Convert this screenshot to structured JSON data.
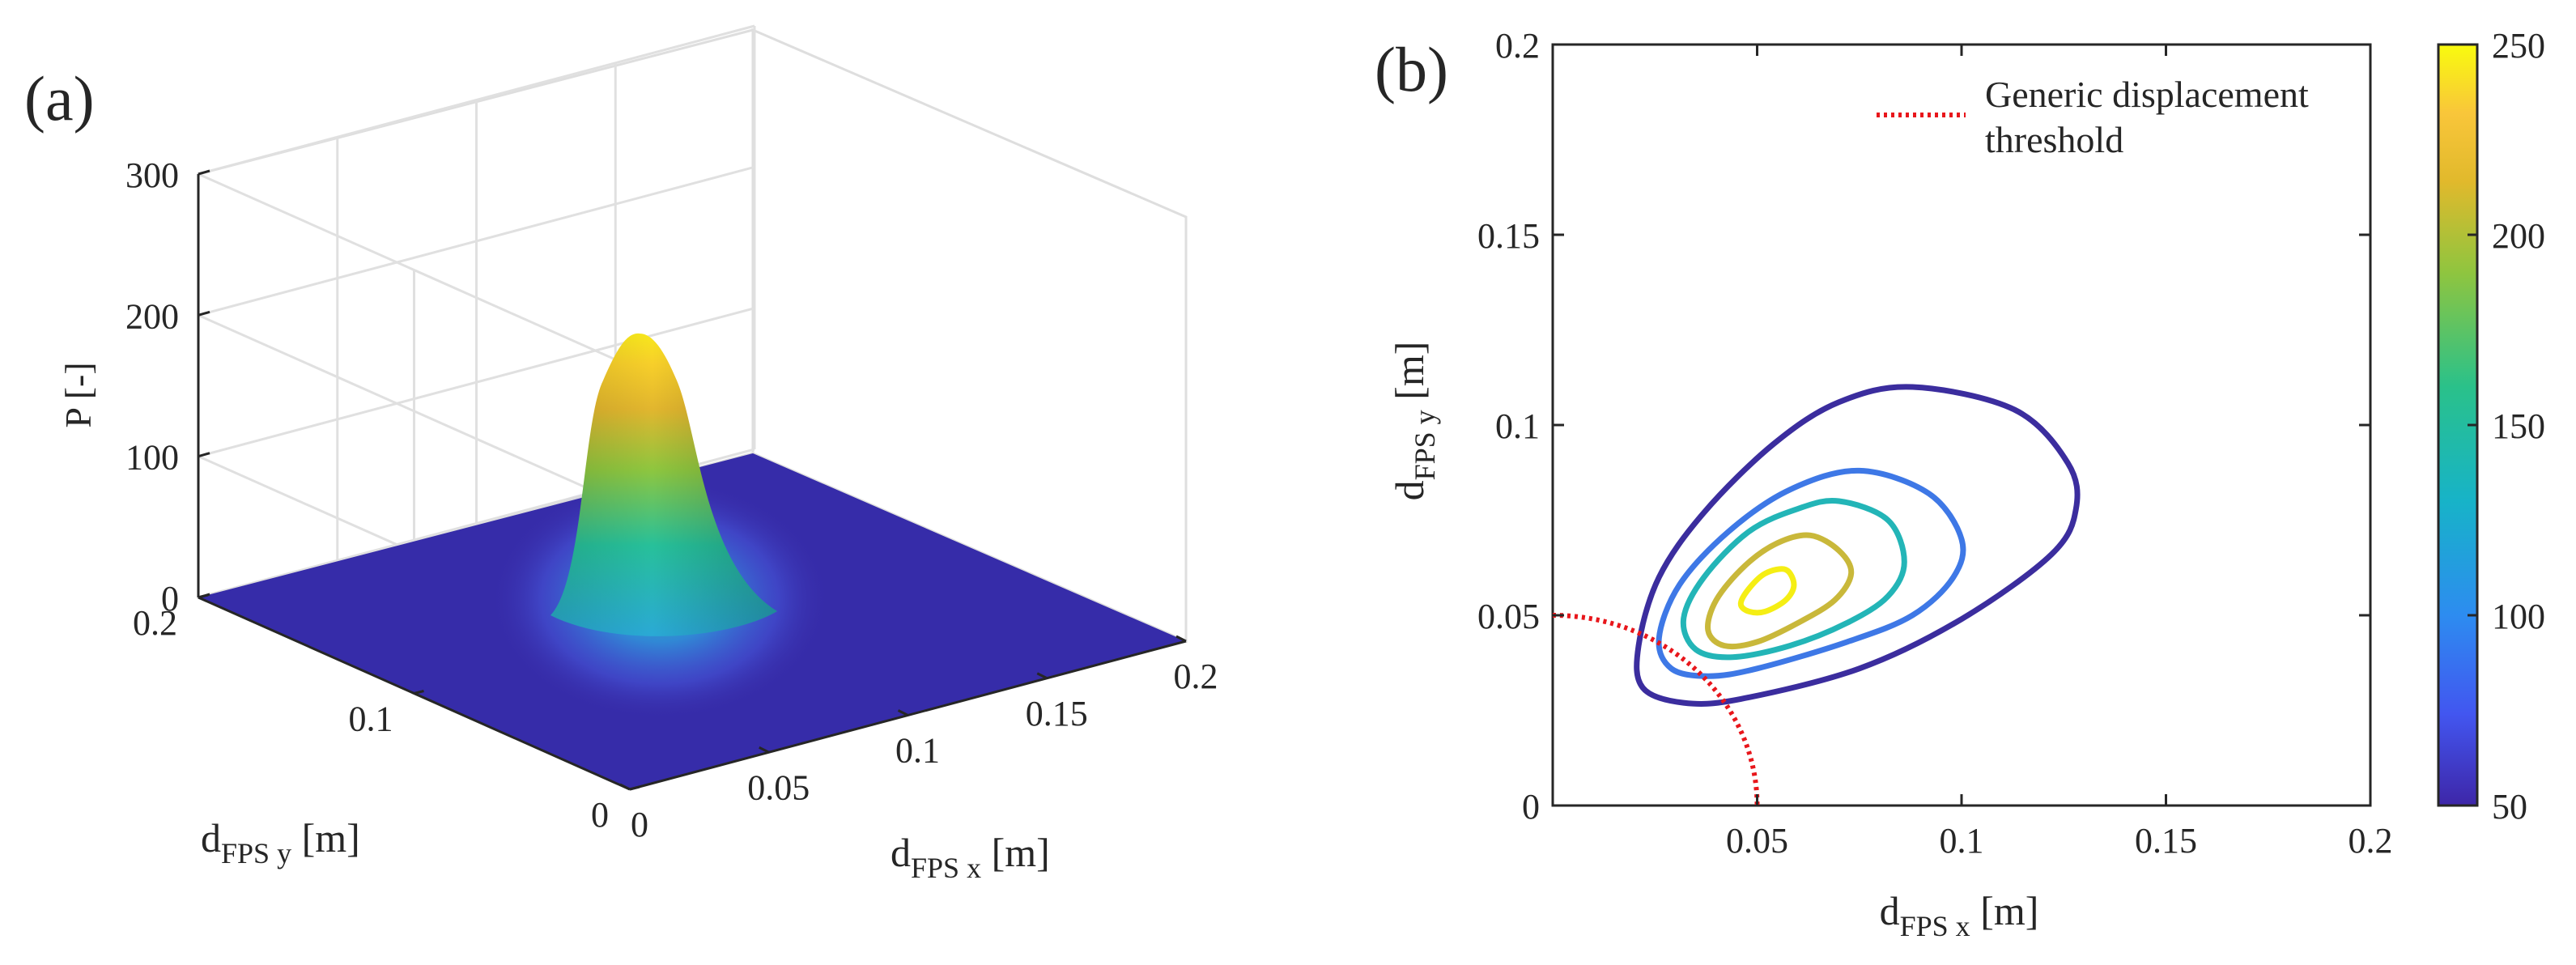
{
  "panels": {
    "a_label": "(a)",
    "b_label": "(b)"
  },
  "chart_data": [
    {
      "panel": "a",
      "type": "surface",
      "zlabel": "P [-]",
      "xlabel": {
        "main": "d",
        "sub": "FPS x",
        "unit": " [m]"
      },
      "ylabel": {
        "main": "d",
        "sub": "FPS y",
        "unit": " [m]"
      },
      "xlim": [
        0,
        0.2
      ],
      "ylim": [
        0,
        0.2
      ],
      "zlim": [
        0,
        300
      ],
      "xticks": [
        0,
        0.05,
        0.1,
        0.15,
        0.2
      ],
      "xtick_labels": [
        "0",
        "0.05",
        "0.1",
        "0.15",
        "0.2"
      ],
      "yticks": [
        0,
        0.1,
        0.2
      ],
      "ytick_labels": [
        "0",
        "0.1",
        "0.2"
      ],
      "zticks": [
        0,
        100,
        200,
        300
      ],
      "ztick_labels": [
        "0",
        "100",
        "200",
        "300"
      ],
      "grid": true,
      "peak": {
        "x": 0.055,
        "y": 0.055,
        "z": 252
      },
      "colormap": [
        "#3e26a8",
        "#4256f0",
        "#2d8cf0",
        "#17b3c8",
        "#2ac18a",
        "#8fc53f",
        "#e1b92c",
        "#f9d425",
        "#f9fb0e"
      ]
    },
    {
      "panel": "b",
      "type": "contour",
      "xlabel": {
        "main": "d",
        "sub": "FPS x",
        "unit": " [m]"
      },
      "ylabel": {
        "main": "d",
        "sub": "FPS y",
        "unit": " [m]"
      },
      "xlim": [
        0,
        0.2
      ],
      "ylim": [
        0,
        0.2
      ],
      "xticks": [
        0.05,
        0.1,
        0.15,
        0.2
      ],
      "xtick_labels": [
        "0.05",
        "0.1",
        "0.15",
        "0.2"
      ],
      "yticks": [
        0,
        0.05,
        0.1,
        0.15,
        0.2
      ],
      "ytick_labels": [
        "0",
        "0.05",
        "0.1",
        "0.15",
        "0.2"
      ],
      "contour_levels": [
        50,
        100,
        150,
        200,
        250
      ],
      "contours": [
        {
          "level": 50,
          "color": "#3b2d9e",
          "points": [
            [
              0.088,
              0.11
            ],
            [
              0.113,
              0.104
            ],
            [
              0.126,
              0.09
            ],
            [
              0.128,
              0.078
            ],
            [
              0.122,
              0.066
            ],
            [
              0.1,
              0.049
            ],
            [
              0.075,
              0.036
            ],
            [
              0.046,
              0.028
            ],
            [
              0.032,
              0.027
            ],
            [
              0.022,
              0.031
            ],
            [
              0.021,
              0.042
            ],
            [
              0.026,
              0.06
            ],
            [
              0.037,
              0.077
            ],
            [
              0.054,
              0.095
            ],
            [
              0.07,
              0.106
            ]
          ]
        },
        {
          "level": 100,
          "color": "#3e78e6",
          "points": [
            [
              0.075,
              0.088
            ],
            [
              0.092,
              0.082
            ],
            [
              0.1,
              0.07
            ],
            [
              0.098,
              0.06
            ],
            [
              0.088,
              0.05
            ],
            [
              0.072,
              0.043
            ],
            [
              0.05,
              0.036
            ],
            [
              0.038,
              0.034
            ],
            [
              0.029,
              0.036
            ],
            [
              0.026,
              0.044
            ],
            [
              0.031,
              0.058
            ],
            [
              0.043,
              0.072
            ],
            [
              0.058,
              0.083
            ]
          ]
        },
        {
          "level": 150,
          "color": "#23b5b7",
          "points": [
            [
              0.07,
              0.08
            ],
            [
              0.082,
              0.075
            ],
            [
              0.086,
              0.064
            ],
            [
              0.082,
              0.055
            ],
            [
              0.072,
              0.048
            ],
            [
              0.058,
              0.042
            ],
            [
              0.044,
              0.039
            ],
            [
              0.035,
              0.041
            ],
            [
              0.032,
              0.049
            ],
            [
              0.037,
              0.06
            ],
            [
              0.048,
              0.072
            ],
            [
              0.06,
              0.078
            ]
          ]
        },
        {
          "level": 200,
          "color": "#c9b83a",
          "points": [
            [
              0.063,
              0.071
            ],
            [
              0.07,
              0.067
            ],
            [
              0.073,
              0.061
            ],
            [
              0.069,
              0.054
            ],
            [
              0.06,
              0.048
            ],
            [
              0.05,
              0.043
            ],
            [
              0.042,
              0.042
            ],
            [
              0.038,
              0.046
            ],
            [
              0.04,
              0.054
            ],
            [
              0.047,
              0.063
            ],
            [
              0.055,
              0.069
            ]
          ]
        },
        {
          "level": 250,
          "color": "#f5ee14",
          "points": [
            [
              0.057,
              0.062
            ],
            [
              0.059,
              0.058
            ],
            [
              0.057,
              0.054
            ],
            [
              0.052,
              0.051
            ],
            [
              0.048,
              0.051
            ],
            [
              0.046,
              0.053
            ],
            [
              0.048,
              0.057
            ],
            [
              0.052,
              0.061
            ]
          ]
        }
      ],
      "threshold": {
        "label_line1": "Generic displacement",
        "label_line2": "threshold",
        "color": "#e8161b",
        "radius": 0.05
      },
      "colorbar": {
        "range": [
          50,
          250
        ],
        "ticks": [
          50,
          100,
          150,
          200,
          250
        ],
        "tick_labels": [
          "50",
          "100",
          "150",
          "200",
          "250"
        ]
      }
    }
  ]
}
